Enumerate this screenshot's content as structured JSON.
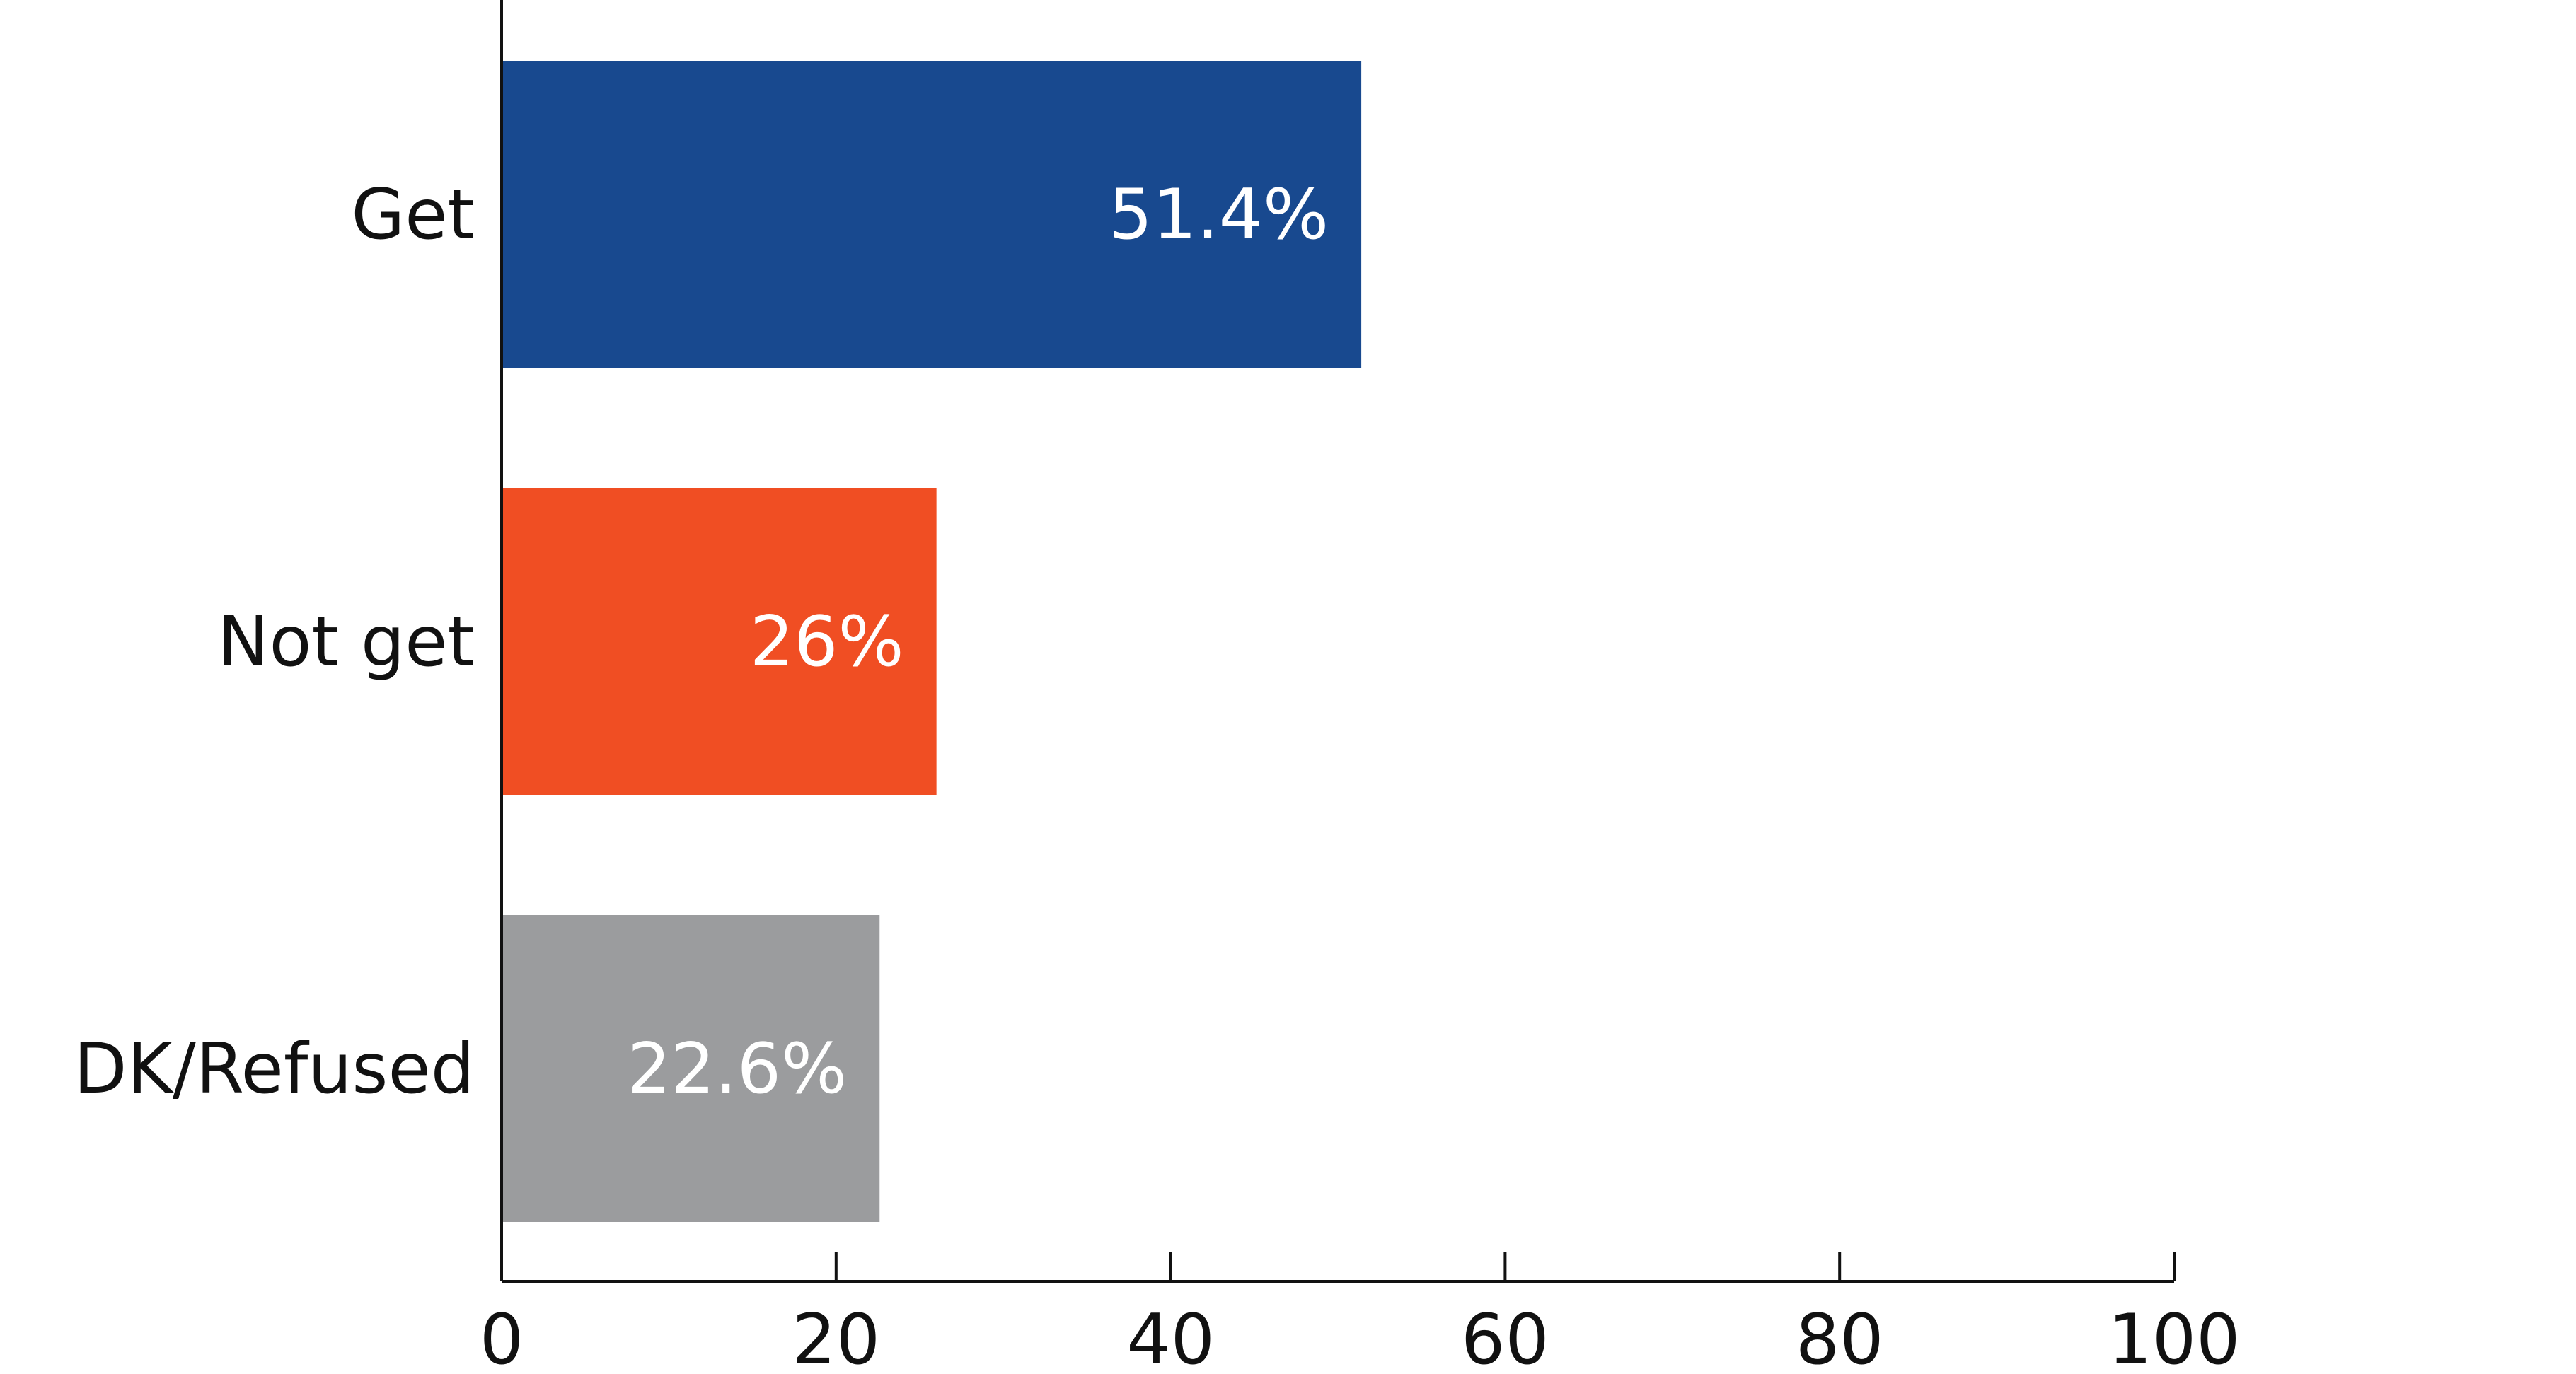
{
  "chart_data": {
    "type": "bar",
    "orientation": "horizontal",
    "categories": [
      "Get",
      "Not get",
      "DK/Refused"
    ],
    "values": [
      51.4,
      26,
      22.6
    ],
    "value_labels": [
      "51.4%",
      "26%",
      "22.6%"
    ],
    "colors": [
      "#18498f",
      "#f04e23",
      "#9b9c9e"
    ],
    "title": "",
    "xlabel": "",
    "ylabel": "",
    "xlim": [
      0,
      100
    ],
    "xticks": [
      0,
      20,
      40,
      60,
      80,
      100
    ],
    "xtick_labels": [
      "0",
      "20",
      "40",
      "60",
      "80",
      "100"
    ],
    "grid": false,
    "legend": "none"
  }
}
